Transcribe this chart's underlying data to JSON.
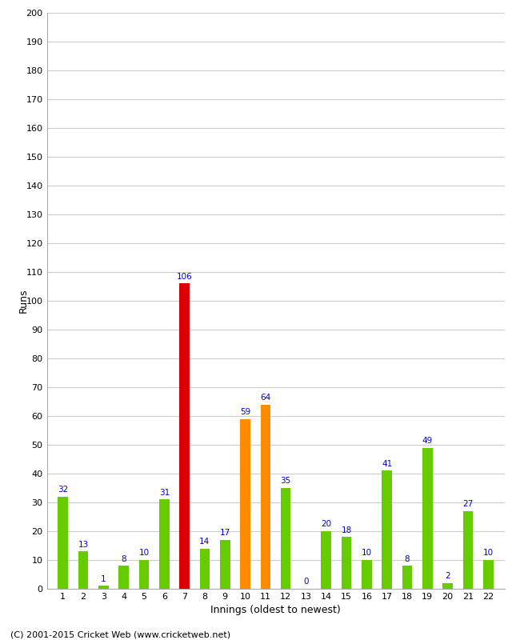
{
  "innings": [
    1,
    2,
    3,
    4,
    5,
    6,
    7,
    8,
    9,
    10,
    11,
    12,
    13,
    14,
    15,
    16,
    17,
    18,
    19,
    20,
    21,
    22
  ],
  "runs": [
    32,
    13,
    1,
    8,
    10,
    31,
    106,
    14,
    17,
    59,
    64,
    35,
    0,
    20,
    18,
    10,
    41,
    8,
    49,
    2,
    27,
    10
  ],
  "colors": [
    "#66cc00",
    "#66cc00",
    "#66cc00",
    "#66cc00",
    "#66cc00",
    "#66cc00",
    "#dd0000",
    "#66cc00",
    "#66cc00",
    "#ff8c00",
    "#ff8c00",
    "#66cc00",
    "#66cc00",
    "#66cc00",
    "#66cc00",
    "#66cc00",
    "#66cc00",
    "#66cc00",
    "#66cc00",
    "#66cc00",
    "#66cc00",
    "#66cc00"
  ],
  "xlabel": "Innings (oldest to newest)",
  "ylabel": "Runs",
  "ylim": [
    0,
    200
  ],
  "yticks": [
    0,
    10,
    20,
    30,
    40,
    50,
    60,
    70,
    80,
    90,
    100,
    110,
    120,
    130,
    140,
    150,
    160,
    170,
    180,
    190,
    200
  ],
  "label_color": "#0000cc",
  "background_color": "#ffffff",
  "grid_color": "#cccccc",
  "footer": "(C) 2001-2015 Cricket Web (www.cricketweb.net)",
  "bar_width": 0.5
}
